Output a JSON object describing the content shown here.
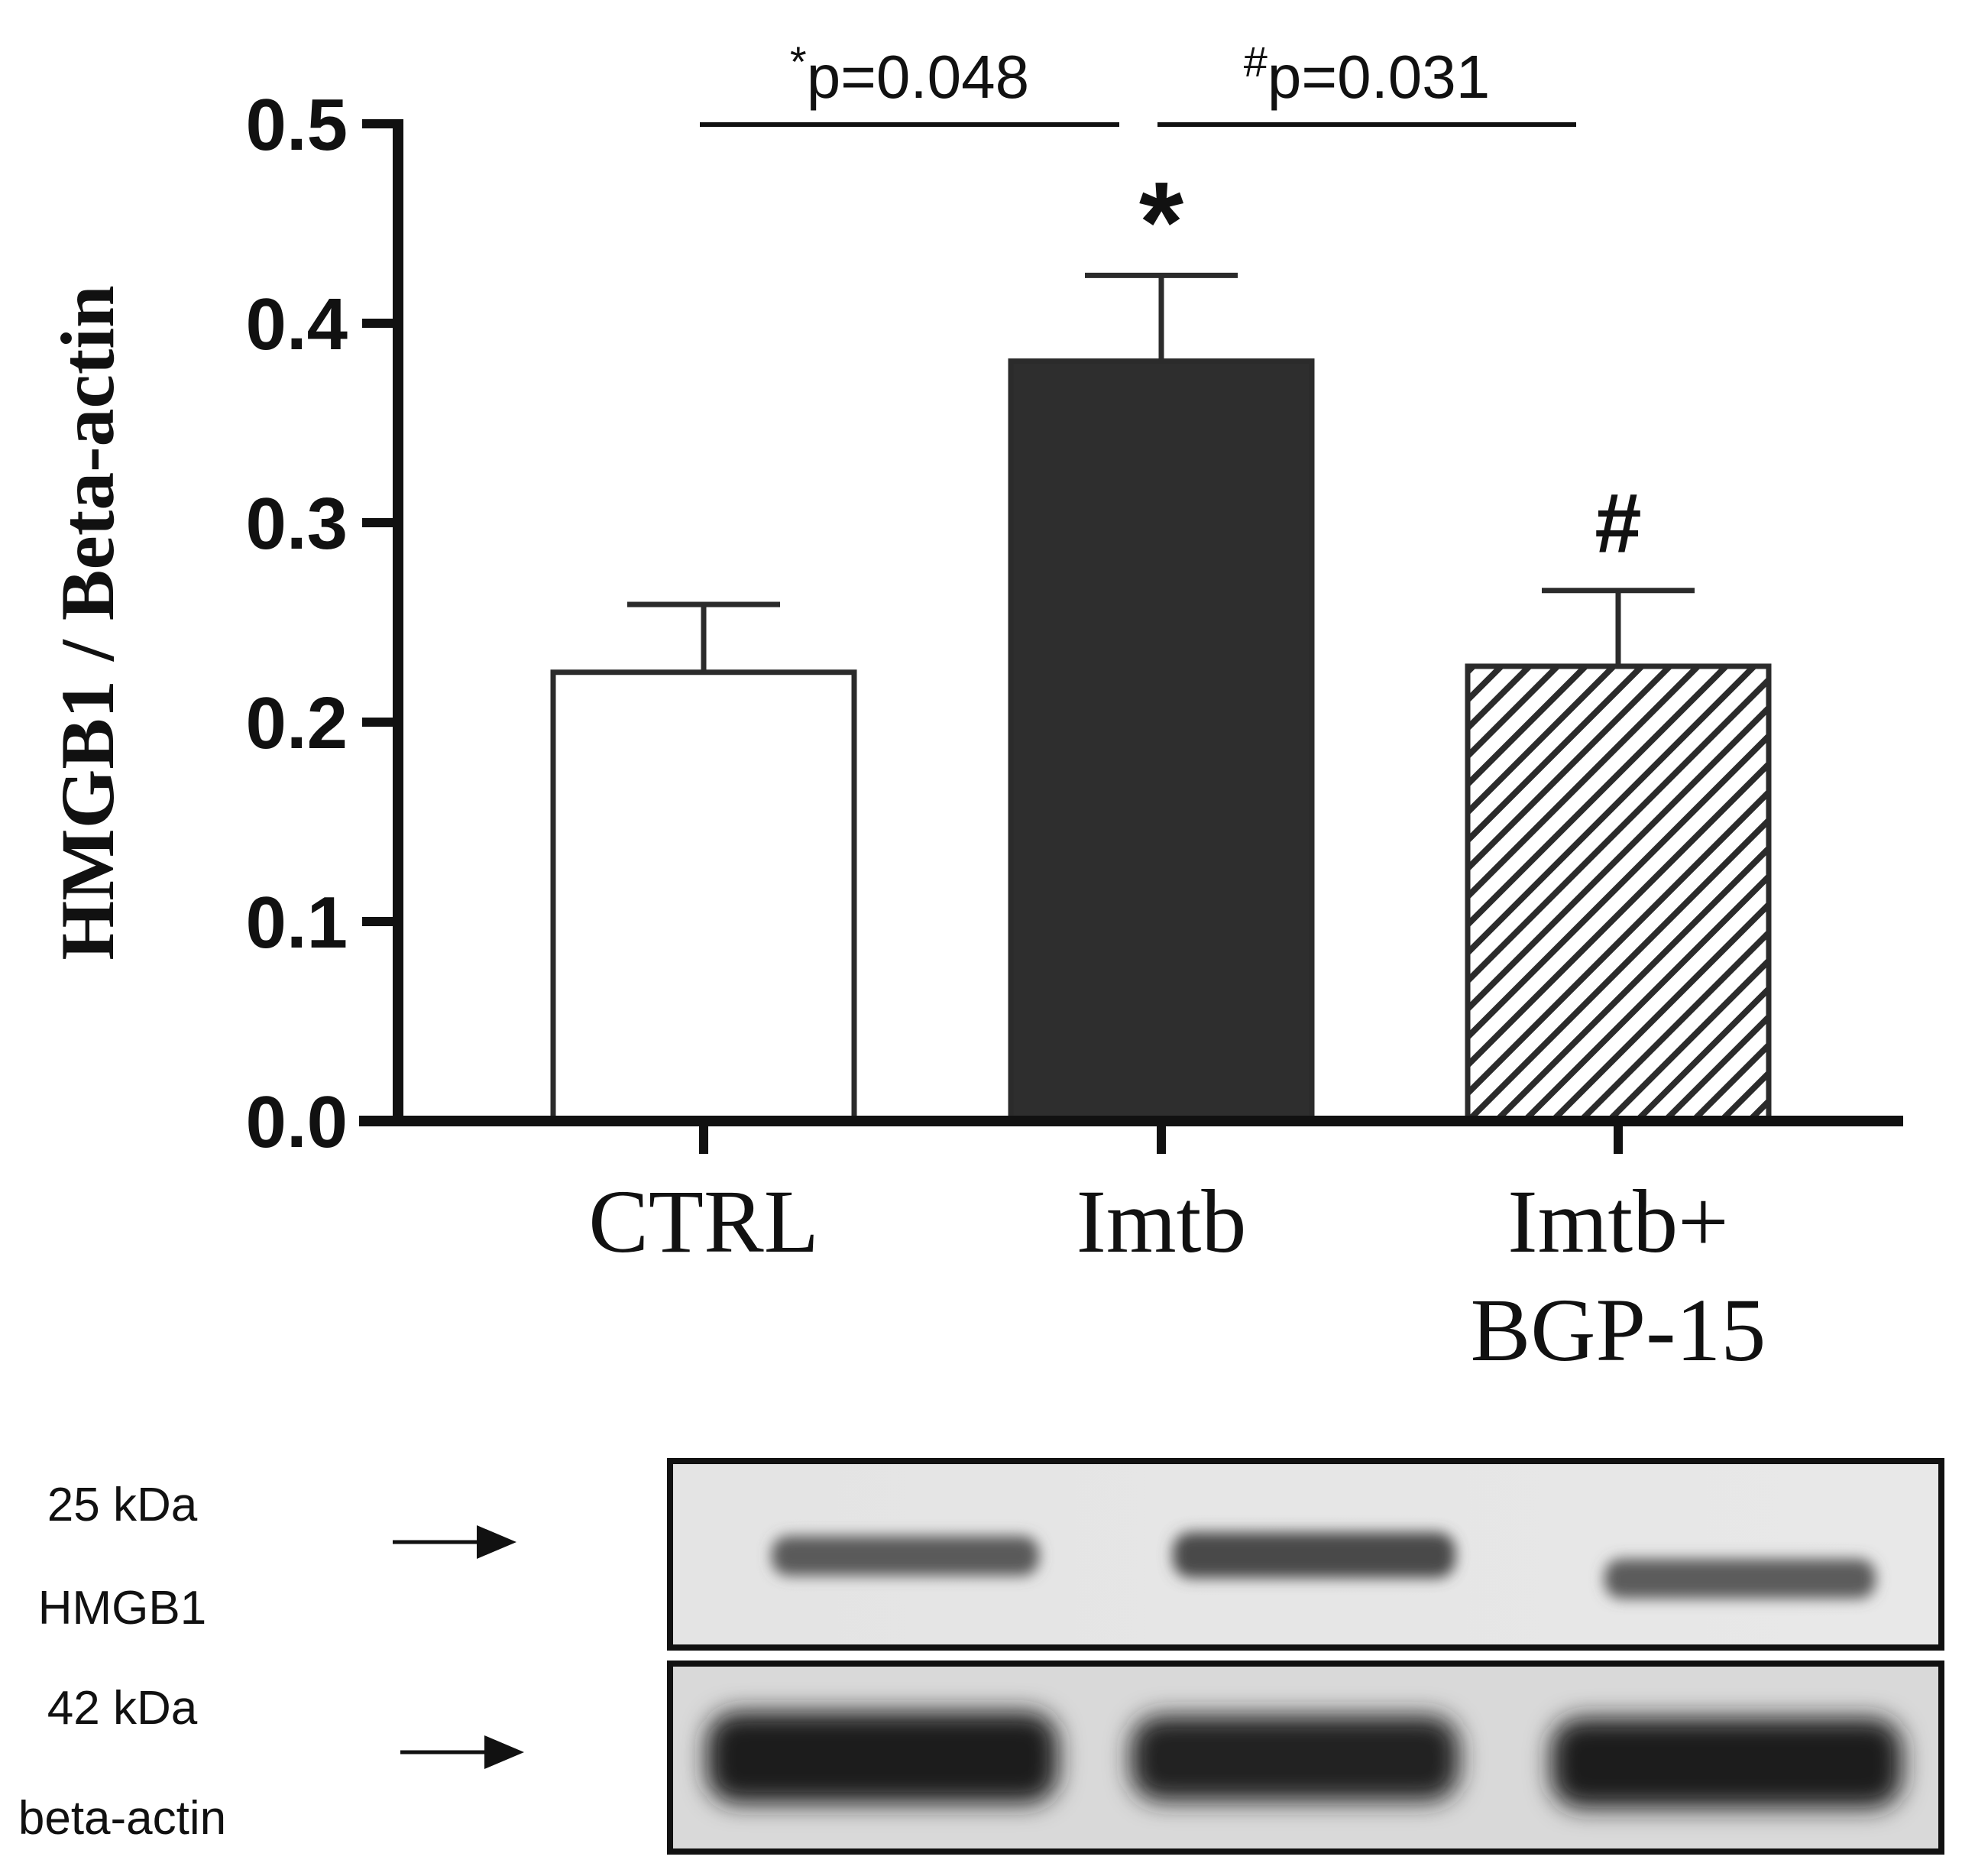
{
  "chart_data": {
    "type": "bar",
    "categories": [
      "CTRL",
      "Imtb",
      "Imtb+\nBGP-15"
    ],
    "category_lines": [
      [
        "CTRL"
      ],
      [
        "Imtb"
      ],
      [
        "Imtb+",
        "BGP-15"
      ]
    ],
    "values": [
      0.225,
      0.381,
      0.228
    ],
    "errors": [
      0.034,
      0.043,
      0.038
    ],
    "bar_styles": [
      "white",
      "dark",
      "hatched"
    ],
    "colors": {
      "edge": "#2b2b2b",
      "dark_fill": "#2e2e2e",
      "light_fill": "#ffffff"
    },
    "ylabel": "HMGB1 / Beta-actin",
    "ylim": [
      0,
      0.5
    ],
    "yticks": [
      "0.0",
      "0.1",
      "0.2",
      "0.3",
      "0.4",
      "0.5"
    ],
    "significance": [
      {
        "bar": 1,
        "mark": "*"
      },
      {
        "bar": 2,
        "mark": "#"
      }
    ],
    "comparisons": [
      {
        "from": 0,
        "to": 1,
        "symbol": "*",
        "text": "p=0.048"
      },
      {
        "from": 1,
        "to": 2,
        "symbol": "#",
        "text": "p=0.031"
      }
    ]
  },
  "blot": {
    "rows": [
      {
        "mw": "25 kDa",
        "protein": "HMGB1"
      },
      {
        "mw": "42 kDa",
        "protein": "beta-actin"
      }
    ]
  }
}
